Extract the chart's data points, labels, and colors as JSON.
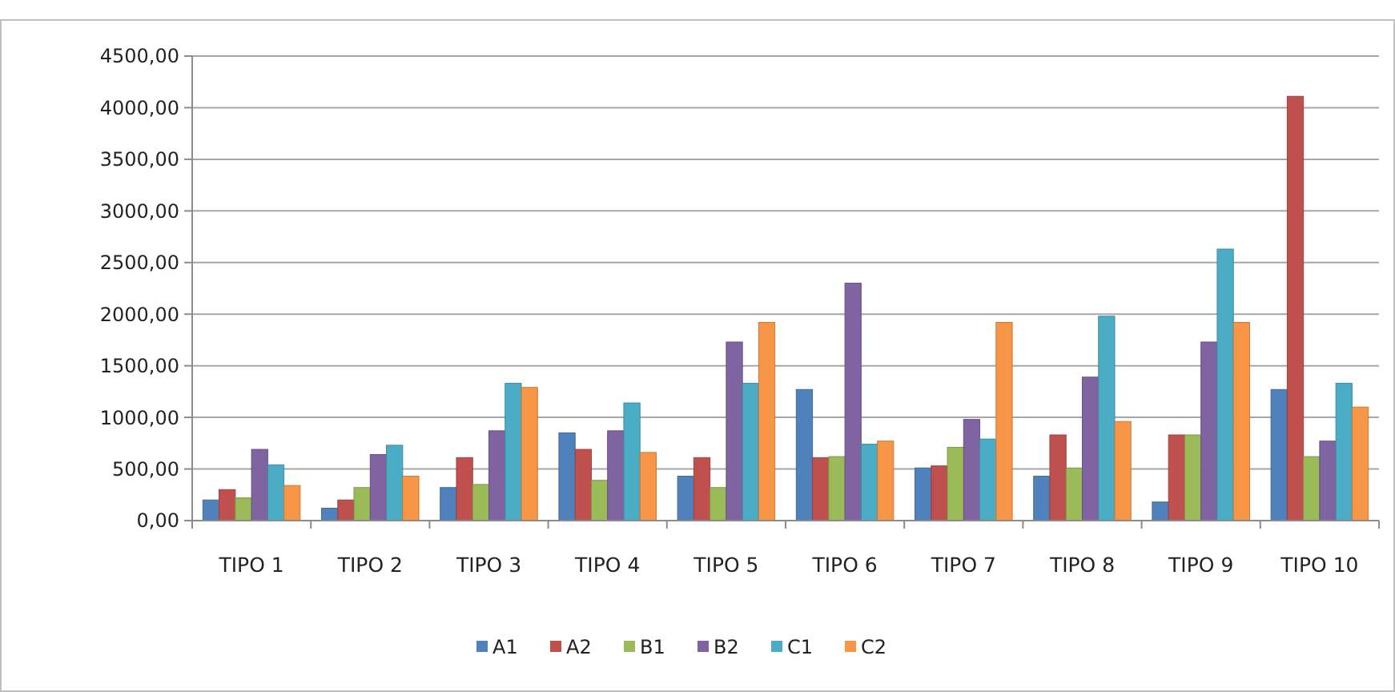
{
  "chart_data": {
    "type": "bar",
    "categories": [
      "TIPO 1",
      "TIPO 2",
      "TIPO 3",
      "TIPO 4",
      "TIPO 5",
      "TIPO 6",
      "TIPO 7",
      "TIPO 8",
      "TIPO 9",
      "TIPO 10"
    ],
    "series": [
      {
        "name": "A1",
        "color": "#4f81bd",
        "values": [
          200,
          120,
          320,
          850,
          430,
          1270,
          510,
          430,
          180,
          1270
        ]
      },
      {
        "name": "A2",
        "color": "#c0504d",
        "values": [
          300,
          200,
          610,
          690,
          610,
          610,
          530,
          830,
          830,
          4110
        ]
      },
      {
        "name": "B1",
        "color": "#9bbb59",
        "values": [
          220,
          320,
          350,
          390,
          320,
          620,
          710,
          510,
          830,
          620
        ]
      },
      {
        "name": "B2",
        "color": "#8064a2",
        "values": [
          690,
          640,
          870,
          870,
          1730,
          2300,
          980,
          1390,
          1730,
          770
        ]
      },
      {
        "name": "C1",
        "color": "#4bacc6",
        "values": [
          540,
          730,
          1330,
          1140,
          1330,
          740,
          790,
          1980,
          2630,
          1330
        ]
      },
      {
        "name": "C2",
        "color": "#f79646",
        "values": [
          340,
          430,
          1290,
          660,
          1920,
          770,
          1920,
          960,
          1920,
          1100
        ]
      }
    ],
    "ylim": [
      0,
      4500
    ],
    "yticks": [
      {
        "value": 0,
        "label": "0,00"
      },
      {
        "value": 500,
        "label": "500,00"
      },
      {
        "value": 1000,
        "label": "1000,00"
      },
      {
        "value": 1500,
        "label": "1500,00"
      },
      {
        "value": 2000,
        "label": "2000,00"
      },
      {
        "value": 2500,
        "label": "2500,00"
      },
      {
        "value": 3000,
        "label": "3000,00"
      },
      {
        "value": 3500,
        "label": "3500,00"
      },
      {
        "value": 4000,
        "label": "4000,00"
      },
      {
        "value": 4500,
        "label": "4500,00"
      }
    ],
    "grid": "y",
    "legend": "bottom"
  }
}
